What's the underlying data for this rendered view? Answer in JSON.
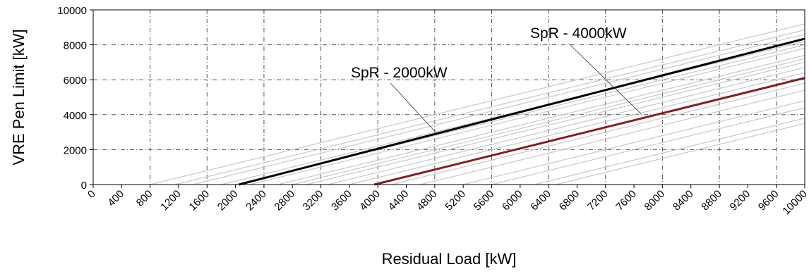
{
  "chart_data": {
    "type": "line",
    "xlabel": "Residual Load [kW]",
    "ylabel": "VRE Pen Limit [kW]",
    "xlim": [
      0,
      10000
    ],
    "ylim": [
      0,
      10000
    ],
    "x_ticks": [
      "0",
      "400",
      "800",
      "1200",
      "1600",
      "2000",
      "2400",
      "2800",
      "3200",
      "3600",
      "4000",
      "4400",
      "4800",
      "5200",
      "5600",
      "6000",
      "6400",
      "6800",
      "7200",
      "7600",
      "8000",
      "8400",
      "8800",
      "9200",
      "9600",
      "10000"
    ],
    "y_ticks": [
      "0",
      "2000",
      "4000",
      "6000",
      "8000",
      "10000"
    ],
    "grid": true,
    "series": [
      {
        "x": [
          800,
          10000
        ],
        "y": [
          0,
          9200
        ],
        "color": "#c8c8c8"
      },
      {
        "x": [
          1150,
          10000
        ],
        "y": [
          0,
          8850
        ],
        "color": "#c8c8c8"
      },
      {
        "x": [
          1400,
          10000
        ],
        "y": [
          0,
          8600
        ],
        "color": "#c8c8c8"
      },
      {
        "x": [
          1800,
          10000
        ],
        "y": [
          0,
          8200
        ],
        "color": "#c8c8c8"
      },
      {
        "x": [
          2000,
          10000
        ],
        "y": [
          0,
          8000
        ],
        "color": "#c8c8c8"
      },
      {
        "x": [
          2200,
          10000
        ],
        "y": [
          0,
          7800
        ],
        "color": "#c8c8c8"
      },
      {
        "x": [
          2050,
          10000
        ],
        "y": [
          0,
          8350
        ],
        "color": "#000000"
      },
      {
        "x": [
          2600,
          10000
        ],
        "y": [
          0,
          7400
        ],
        "color": "#c8c8c8"
      },
      {
        "x": [
          2800,
          10000
        ],
        "y": [
          0,
          7200
        ],
        "color": "#c8c8c8"
      },
      {
        "x": [
          3000,
          10000
        ],
        "y": [
          0,
          7000
        ],
        "color": "#c8c8c8"
      },
      {
        "x": [
          3300,
          10000
        ],
        "y": [
          0,
          6700
        ],
        "color": "#c8c8c8"
      },
      {
        "x": [
          3600,
          10000
        ],
        "y": [
          0,
          6400
        ],
        "color": "#c8c8c8"
      },
      {
        "x": [
          3950,
          10000
        ],
        "y": [
          0,
          6100
        ],
        "color": "#8b1a1a"
      },
      {
        "x": [
          4200,
          10000
        ],
        "y": [
          0,
          5800
        ],
        "color": "#c8c8c8"
      },
      {
        "x": [
          4600,
          10000
        ],
        "y": [
          0,
          5400
        ],
        "color": "#c8c8c8"
      },
      {
        "x": [
          5200,
          10000
        ],
        "y": [
          0,
          4800
        ],
        "color": "#c8c8c8"
      },
      {
        "x": [
          5600,
          10000
        ],
        "y": [
          0,
          4400
        ],
        "color": "#c8c8c8"
      },
      {
        "x": [
          6200,
          10000
        ],
        "y": [
          0,
          3800
        ],
        "color": "#c8c8c8"
      },
      {
        "x": [
          6500,
          10000
        ],
        "y": [
          0,
          3500
        ],
        "color": "#c8c8c8"
      }
    ],
    "annotations": [
      {
        "text": "SpR - 2000kW",
        "point": [
          4800,
          3050
        ]
      },
      {
        "text": "SpR - 4000kW",
        "point": [
          7700,
          4050
        ]
      }
    ]
  }
}
